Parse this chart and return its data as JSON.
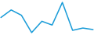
{
  "y": [
    0.5,
    1.5,
    0.8,
    -1.5,
    0.0,
    -0.5,
    2.5,
    -1.2,
    -0.9,
    -1.1
  ],
  "line_color": "#1a9cd8",
  "line_width": 1.1,
  "background_color": "#ffffff"
}
